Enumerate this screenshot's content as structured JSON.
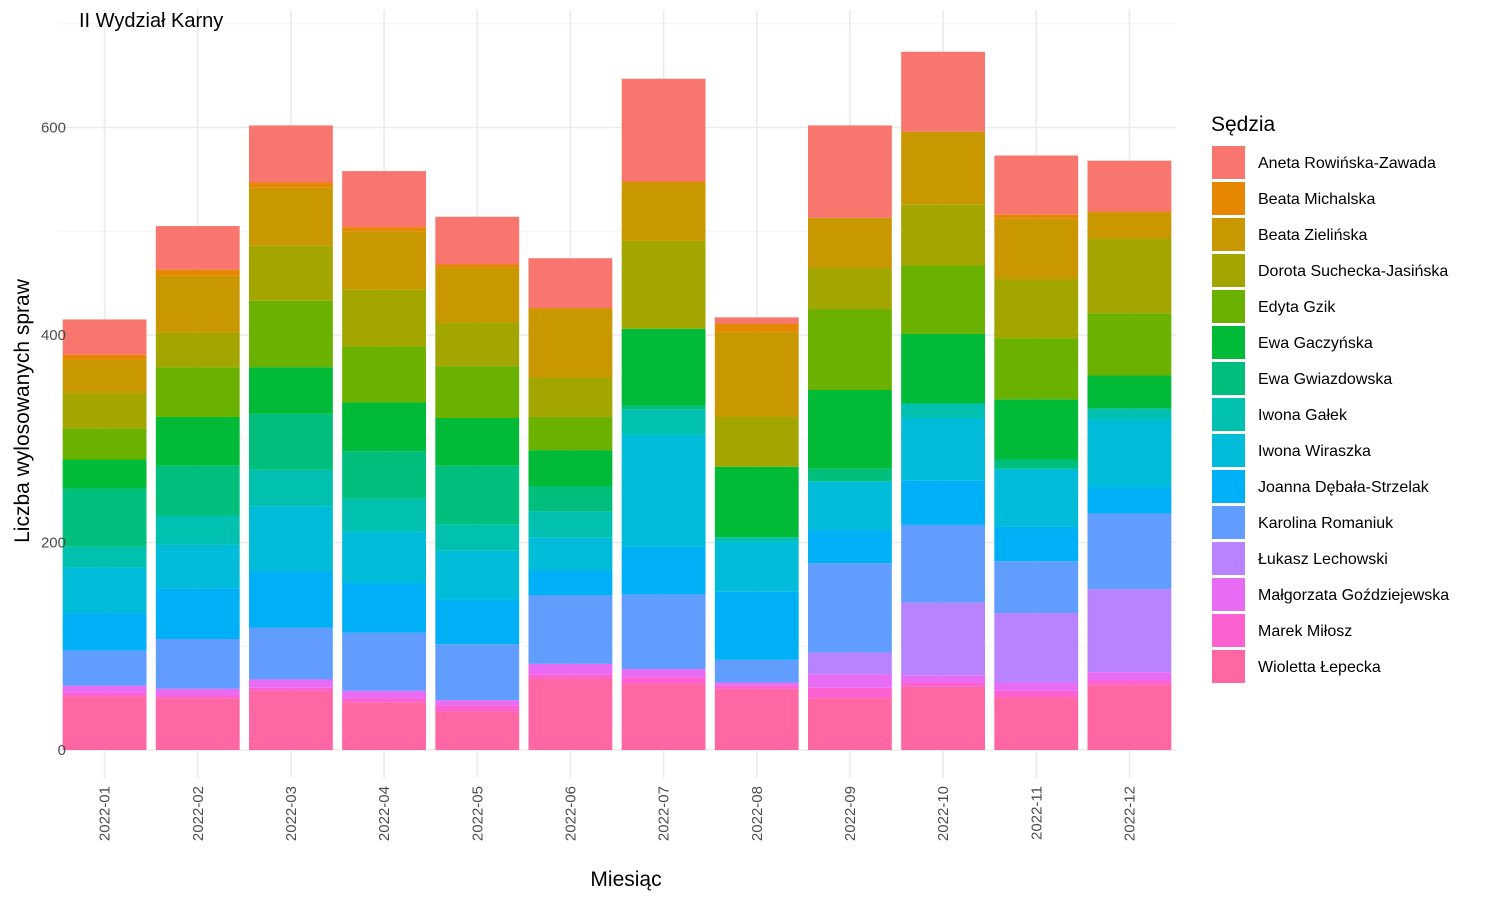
{
  "chart_data": {
    "type": "bar",
    "stacked": true,
    "title": "II Wydział Karny",
    "xlabel": "Miesiąc",
    "ylabel": "Liczba wylosowanych spraw",
    "ylim": [
      0,
      700
    ],
    "yticks": [
      0,
      200,
      400,
      600
    ],
    "grid": true,
    "legend_title": "Sędzia",
    "legend_position": "right",
    "categories": [
      "2022-01",
      "2022-02",
      "2022-03",
      "2022-04",
      "2022-05",
      "2022-06",
      "2022-07",
      "2022-08",
      "2022-09",
      "2022-10",
      "2022-11",
      "2022-12"
    ],
    "series": [
      {
        "name": "Aneta Rowińska-Zawada",
        "color": "#F8766D",
        "values": [
          34,
          42,
          55,
          54,
          46,
          48,
          99,
          6,
          89,
          77,
          57,
          49
        ]
      },
      {
        "name": "Beata Michalska",
        "color": "#E58700",
        "values": [
          5,
          6,
          5,
          4,
          3,
          1,
          1,
          8,
          0,
          0,
          4,
          1
        ]
      },
      {
        "name": "Beata Zielińska",
        "color": "#C99800",
        "values": [
          32,
          55,
          56,
          56,
          53,
          66,
          56,
          82,
          48,
          70,
          58,
          25
        ]
      },
      {
        "name": "Dorota Suchecka-Jasińska",
        "color": "#A3A500",
        "values": [
          34,
          33,
          53,
          55,
          42,
          38,
          85,
          48,
          40,
          59,
          57,
          72
        ]
      },
      {
        "name": "Edyta Gzik",
        "color": "#6BB100",
        "values": [
          30,
          48,
          64,
          54,
          50,
          32,
          0,
          0,
          78,
          66,
          59,
          60
        ]
      },
      {
        "name": "Ewa Gaczyńska",
        "color": "#00BA38",
        "values": [
          28,
          47,
          45,
          47,
          46,
          35,
          74,
          68,
          76,
          67,
          58,
          32
        ]
      },
      {
        "name": "Ewa Gwiazdowska",
        "color": "#00BF7D",
        "values": [
          56,
          48,
          54,
          46,
          57,
          24,
          4,
          0,
          12,
          0,
          9,
          0
        ]
      },
      {
        "name": "Iwona Gałek",
        "color": "#00C0AF",
        "values": [
          20,
          28,
          35,
          31,
          25,
          25,
          24,
          4,
          0,
          14,
          0,
          10
        ]
      },
      {
        "name": "Iwona Wiraszka",
        "color": "#00BCD8",
        "values": [
          44,
          42,
          63,
          50,
          47,
          32,
          108,
          48,
          47,
          60,
          56,
          66
        ]
      },
      {
        "name": "Joanna Dębała-Strzelak",
        "color": "#00B0F6",
        "values": [
          36,
          49,
          54,
          48,
          43,
          24,
          46,
          66,
          32,
          43,
          33,
          25
        ]
      },
      {
        "name": "Karolina Romaniuk",
        "color": "#619CFF",
        "values": [
          34,
          48,
          50,
          56,
          54,
          66,
          72,
          22,
          86,
          75,
          50,
          73
        ]
      },
      {
        "name": "Łukasz Lechowski",
        "color": "#B983FF",
        "values": [
          0,
          0,
          0,
          0,
          0,
          0,
          0,
          0,
          21,
          70,
          67,
          80
        ]
      },
      {
        "name": "Małgorzata Goździejewska",
        "color": "#E76BF3",
        "values": [
          7,
          6,
          8,
          7,
          5,
          10,
          8,
          3,
          13,
          7,
          8,
          8
        ]
      },
      {
        "name": "Marek Miłosz",
        "color": "#FD61D1",
        "values": [
          3,
          3,
          3,
          4,
          6,
          4,
          6,
          3,
          10,
          4,
          6,
          4
        ]
      },
      {
        "name": "Wioletta Łepecka",
        "color": "#FF67A4",
        "values": [
          52,
          50,
          57,
          46,
          37,
          69,
          64,
          59,
          50,
          61,
          51,
          63
        ]
      }
    ]
  }
}
